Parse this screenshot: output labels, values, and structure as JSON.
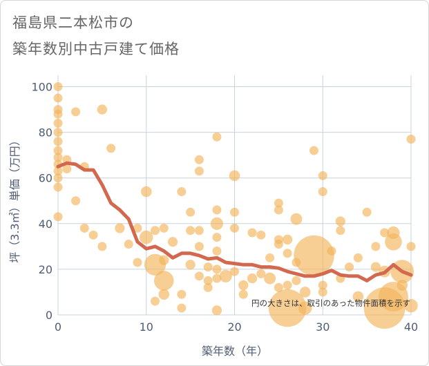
{
  "header": {
    "title_line1": "福島県二本松市の",
    "title_line2": "築年数別中古戸建て価格"
  },
  "chart_data": {
    "type": "scatter",
    "xlabel": "築年数（年）",
    "ylabel": "坪（3.3㎡）単価（万円）",
    "xlim": [
      0,
      40
    ],
    "ylim": [
      0,
      105
    ],
    "xticks": [
      "0",
      "10",
      "20",
      "30",
      "40"
    ],
    "yticks": [
      "0",
      "20",
      "40",
      "60",
      "80",
      "100"
    ],
    "grid": true,
    "annotation": "円の大きさは、取引のあった物件面積を示す",
    "colors": {
      "bubble": "#f2b35a",
      "line": "#d2694f",
      "grid": "#c8d2e0"
    },
    "series": [
      {
        "type": "line",
        "x": [
          0,
          1,
          2,
          3,
          4,
          5,
          6,
          7,
          8,
          9,
          10,
          11,
          12,
          13,
          14,
          15,
          16,
          17,
          18,
          19,
          20,
          21,
          22,
          23,
          24,
          25,
          26,
          27,
          28,
          29,
          30,
          31,
          32,
          33,
          34,
          35,
          36,
          37,
          38,
          39,
          40
        ],
        "y": [
          65,
          66.5,
          66,
          63.5,
          63.5,
          57,
          49,
          46,
          42,
          32,
          29,
          30,
          28,
          25,
          27,
          27,
          26,
          24.5,
          25,
          23,
          22.5,
          22,
          22,
          21,
          21,
          20.5,
          19,
          18,
          17,
          17,
          18,
          19.5,
          17.5,
          17,
          17,
          15,
          17.5,
          18.5,
          22,
          19,
          17.5
        ]
      },
      {
        "type": "bubble",
        "points": [
          {
            "x": 0,
            "y": 100,
            "s": 1
          },
          {
            "x": 0,
            "y": 95,
            "s": 1
          },
          {
            "x": 0,
            "y": 90,
            "s": 1
          },
          {
            "x": 0,
            "y": 88,
            "s": 1
          },
          {
            "x": 0,
            "y": 84,
            "s": 1
          },
          {
            "x": 0,
            "y": 80,
            "s": 1
          },
          {
            "x": 0,
            "y": 76,
            "s": 1
          },
          {
            "x": 0,
            "y": 72,
            "s": 1
          },
          {
            "x": 0,
            "y": 69,
            "s": 1
          },
          {
            "x": 0,
            "y": 66,
            "s": 1
          },
          {
            "x": 0,
            "y": 63,
            "s": 1
          },
          {
            "x": 0,
            "y": 60,
            "s": 1
          },
          {
            "x": 0,
            "y": 56,
            "s": 1
          },
          {
            "x": 0,
            "y": 43,
            "s": 1
          },
          {
            "x": 1,
            "y": 68,
            "s": 1
          },
          {
            "x": 1,
            "y": 64,
            "s": 1
          },
          {
            "x": 2,
            "y": 89,
            "s": 1
          },
          {
            "x": 2,
            "y": 50,
            "s": 1
          },
          {
            "x": 3,
            "y": 65,
            "s": 1
          },
          {
            "x": 3,
            "y": 38,
            "s": 1
          },
          {
            "x": 4,
            "y": 35,
            "s": 1
          },
          {
            "x": 5,
            "y": 90,
            "s": 1.1
          },
          {
            "x": 5,
            "y": 30,
            "s": 1
          },
          {
            "x": 6,
            "y": 73,
            "s": 1
          },
          {
            "x": 7,
            "y": 38,
            "s": 1.1
          },
          {
            "x": 8,
            "y": 31,
            "s": 1
          },
          {
            "x": 9,
            "y": 38,
            "s": 1
          },
          {
            "x": 9,
            "y": 23,
            "s": 1
          },
          {
            "x": 10,
            "y": 54,
            "s": 1.2
          },
          {
            "x": 10,
            "y": 34,
            "s": 1.5
          },
          {
            "x": 11,
            "y": 37,
            "s": 1
          },
          {
            "x": 11,
            "y": 22,
            "s": 2.4
          },
          {
            "x": 11,
            "y": 6,
            "s": 1
          },
          {
            "x": 12,
            "y": 38,
            "s": 1
          },
          {
            "x": 12,
            "y": 24,
            "s": 1.1
          },
          {
            "x": 12,
            "y": 15,
            "s": 2.2
          },
          {
            "x": 12,
            "y": 9,
            "s": 1.2
          },
          {
            "x": 13,
            "y": 32,
            "s": 1.1
          },
          {
            "x": 14,
            "y": 54,
            "s": 1
          },
          {
            "x": 14,
            "y": 9,
            "s": 1
          },
          {
            "x": 14,
            "y": 3,
            "s": 1
          },
          {
            "x": 15,
            "y": 45,
            "s": 1
          },
          {
            "x": 15,
            "y": 37,
            "s": 1
          },
          {
            "x": 15,
            "y": 22,
            "s": 1.1
          },
          {
            "x": 16,
            "y": 68,
            "s": 1
          },
          {
            "x": 16,
            "y": 63,
            "s": 1
          },
          {
            "x": 16,
            "y": 37,
            "s": 1
          },
          {
            "x": 16,
            "y": 30,
            "s": 1
          },
          {
            "x": 16,
            "y": 17,
            "s": 1
          },
          {
            "x": 17,
            "y": 21,
            "s": 1
          },
          {
            "x": 17,
            "y": 15,
            "s": 1
          },
          {
            "x": 17,
            "y": 12,
            "s": 1
          },
          {
            "x": 18,
            "y": 78,
            "s": 1
          },
          {
            "x": 18,
            "y": 46,
            "s": 1
          },
          {
            "x": 18,
            "y": 40,
            "s": 1.4
          },
          {
            "x": 18,
            "y": 34,
            "s": 1
          },
          {
            "x": 18,
            "y": 28,
            "s": 1
          },
          {
            "x": 18,
            "y": 20,
            "s": 1
          },
          {
            "x": 18,
            "y": 16,
            "s": 1
          },
          {
            "x": 18,
            "y": 2,
            "s": 1.1
          },
          {
            "x": 19,
            "y": 17,
            "s": 1.4
          },
          {
            "x": 20,
            "y": 61,
            "s": 1.2
          },
          {
            "x": 20,
            "y": 45,
            "s": 1
          },
          {
            "x": 20,
            "y": 38,
            "s": 1
          },
          {
            "x": 20,
            "y": 19,
            "s": 1
          },
          {
            "x": 21,
            "y": 13,
            "s": 1.1
          },
          {
            "x": 21,
            "y": 9,
            "s": 1
          },
          {
            "x": 22,
            "y": 36,
            "s": 1
          },
          {
            "x": 22,
            "y": 16,
            "s": 1.1
          },
          {
            "x": 23,
            "y": 35,
            "s": 1
          },
          {
            "x": 23,
            "y": 18,
            "s": 1
          },
          {
            "x": 24,
            "y": 25,
            "s": 1
          },
          {
            "x": 24,
            "y": 16,
            "s": 1.3
          },
          {
            "x": 25,
            "y": 49,
            "s": 1
          },
          {
            "x": 25,
            "y": 46,
            "s": 1
          },
          {
            "x": 25,
            "y": 33,
            "s": 1
          },
          {
            "x": 25,
            "y": 31,
            "s": 1
          },
          {
            "x": 25,
            "y": 12,
            "s": 1
          },
          {
            "x": 26,
            "y": 33,
            "s": 1.1
          },
          {
            "x": 26,
            "y": 27,
            "s": 1
          },
          {
            "x": 26,
            "y": 13,
            "s": 1
          },
          {
            "x": 26,
            "y": 3,
            "s": 4.2
          },
          {
            "x": 27,
            "y": 42,
            "s": 1.3
          },
          {
            "x": 27,
            "y": 23,
            "s": 1
          },
          {
            "x": 27,
            "y": 15,
            "s": 1
          },
          {
            "x": 28,
            "y": 10,
            "s": 1.2
          },
          {
            "x": 28,
            "y": 3,
            "s": 1.5
          },
          {
            "x": 29,
            "y": 72,
            "s": 1
          },
          {
            "x": 29,
            "y": 26,
            "s": 4.5
          },
          {
            "x": 30,
            "y": 61,
            "s": 1
          },
          {
            "x": 30,
            "y": 54,
            "s": 1
          },
          {
            "x": 30,
            "y": 13,
            "s": 1
          },
          {
            "x": 30,
            "y": 10,
            "s": 1
          },
          {
            "x": 31,
            "y": 28,
            "s": 1
          },
          {
            "x": 32,
            "y": 41,
            "s": 1.1
          },
          {
            "x": 32,
            "y": 37,
            "s": 1
          },
          {
            "x": 32,
            "y": 16,
            "s": 1
          },
          {
            "x": 33,
            "y": 21,
            "s": 1
          },
          {
            "x": 34,
            "y": 25,
            "s": 1
          },
          {
            "x": 34,
            "y": 8,
            "s": 1.2
          },
          {
            "x": 35,
            "y": 45,
            "s": 1
          },
          {
            "x": 36,
            "y": 30,
            "s": 1
          },
          {
            "x": 36,
            "y": 21,
            "s": 1.1
          },
          {
            "x": 37,
            "y": 36,
            "s": 1
          },
          {
            "x": 37,
            "y": 19,
            "s": 1.3
          },
          {
            "x": 37,
            "y": 3,
            "s": 4.6
          },
          {
            "x": 38,
            "y": 36,
            "s": 1.4
          },
          {
            "x": 38,
            "y": 32,
            "s": 1.9
          },
          {
            "x": 38,
            "y": 8,
            "s": 3.3
          },
          {
            "x": 39,
            "y": 19,
            "s": 2.6
          },
          {
            "x": 39,
            "y": 13,
            "s": 1.2
          },
          {
            "x": 40,
            "y": 77,
            "s": 1
          },
          {
            "x": 40,
            "y": 30,
            "s": 1
          },
          {
            "x": 40,
            "y": 4,
            "s": 1.5
          }
        ]
      }
    ]
  }
}
